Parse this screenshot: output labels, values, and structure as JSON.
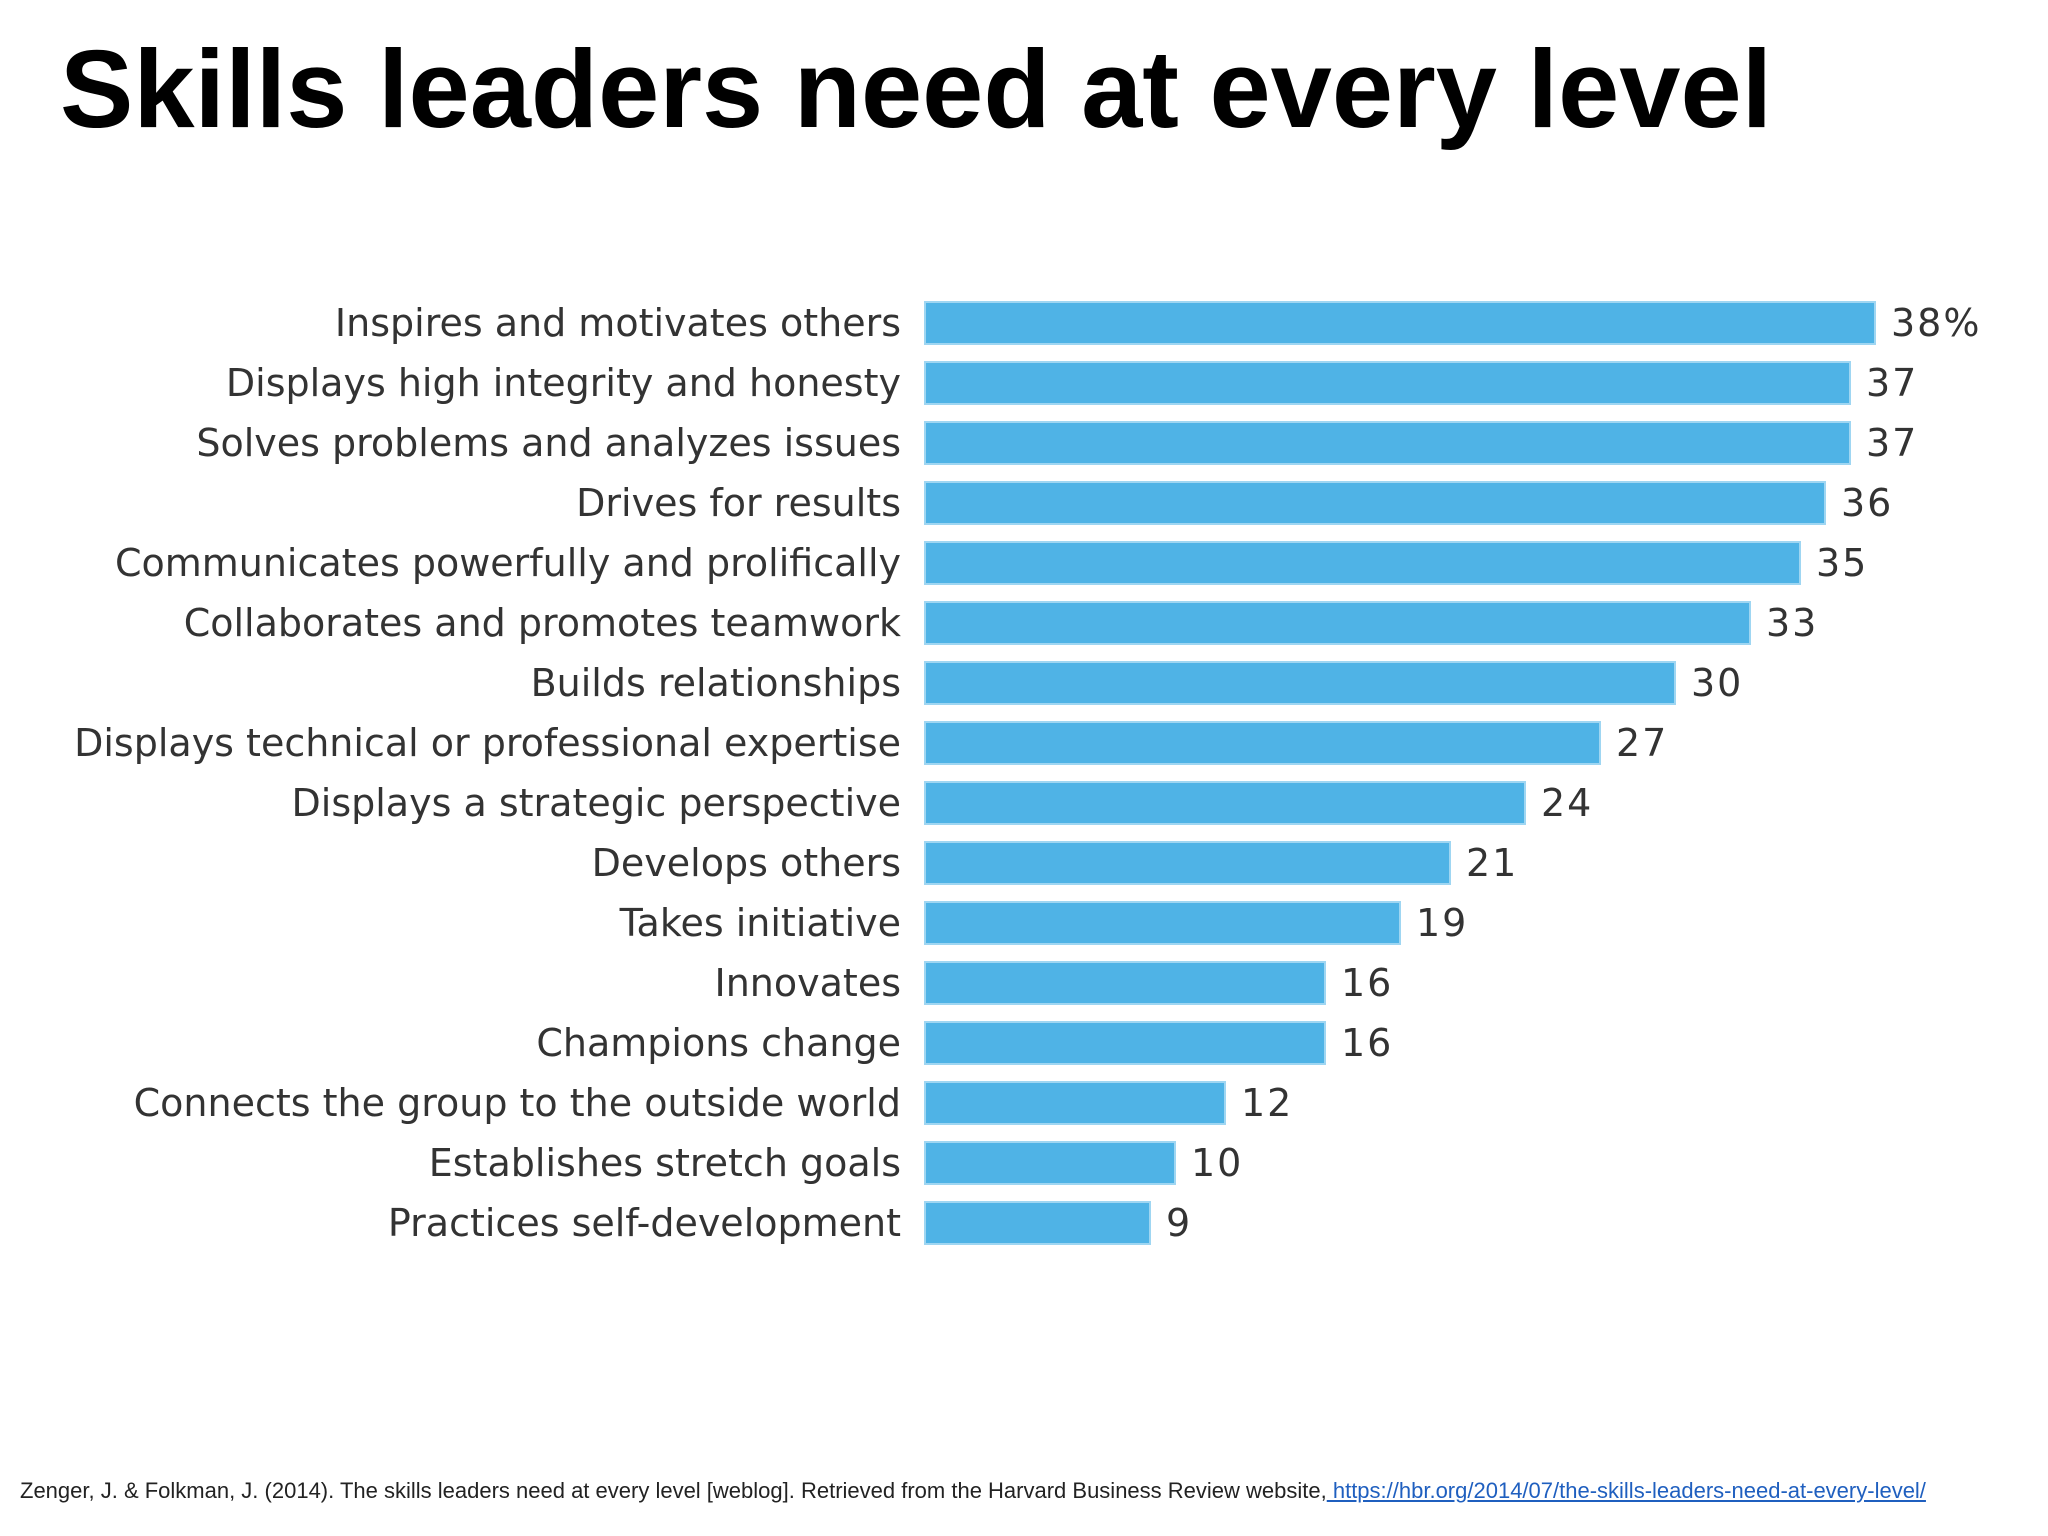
{
  "slide": {
    "title": "Skills leaders need at every level"
  },
  "citation": {
    "text": "Zenger, J. & Folkman, J. (2014). The skills leaders need at every level [weblog]. Retrieved from the Harvard Business Review website,",
    "url": " https://hbr.org/2014/07/the-skills-leaders-need-at-every-level/"
  },
  "colors": {
    "bar": "#4fb3e6",
    "bar_outline": "#9fd6f2",
    "label": "#333333"
  },
  "chart_data": {
    "type": "bar",
    "orientation": "horizontal",
    "categories": [
      "Inspires and motivates others",
      "Displays high integrity and honesty",
      "Solves problems and analyzes issues",
      "Drives for results",
      "Communicates powerfully and prolifically",
      "Collaborates and promotes teamwork",
      "Builds relationships",
      "Displays technical or professional expertise",
      "Displays a strategic perspective",
      "Develops others",
      "Takes initiative",
      "Innovates",
      "Champions change",
      "Connects the group to the outside world",
      "Establishes stretch goals",
      "Practices self-development"
    ],
    "values": [
      38,
      37,
      37,
      36,
      35,
      33,
      30,
      27,
      24,
      21,
      19,
      16,
      16,
      12,
      10,
      9
    ],
    "value_labels": [
      "38%",
      "37",
      "37",
      "36",
      "35",
      "33",
      "30",
      "27",
      "24",
      "21",
      "19",
      "16",
      "16",
      "12",
      "10",
      "9"
    ],
    "xlim": [
      0,
      38
    ],
    "grid": false,
    "legend": "none",
    "title": "",
    "xlabel": "",
    "ylabel": ""
  }
}
